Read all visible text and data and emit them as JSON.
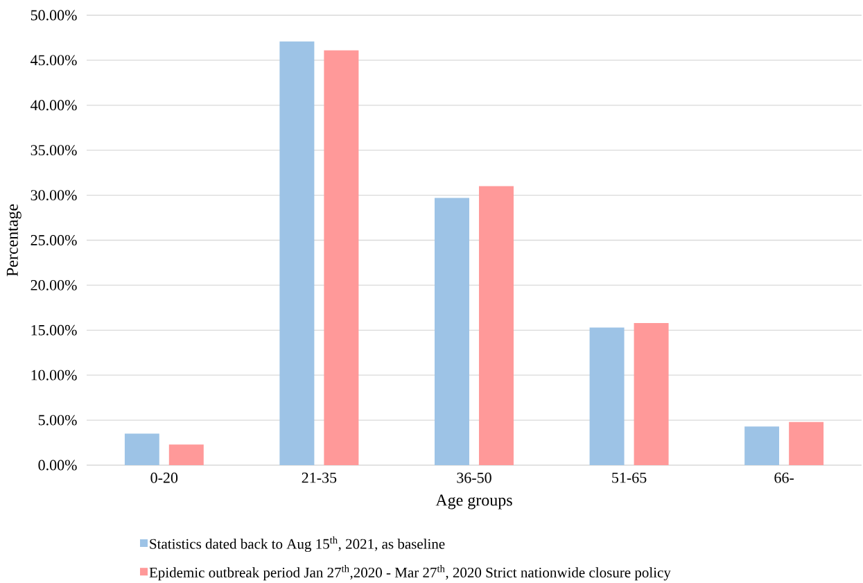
{
  "chart_data": {
    "type": "bar",
    "xlabel": "Age groups",
    "ylabel": "Percentage",
    "categories": [
      "0-20",
      "21-35",
      "36-50",
      "51-65",
      "66-"
    ],
    "series": [
      {
        "name": "Statistics dated back to Aug 15$^{th}$, 2021, as baseline",
        "color": "#9dc3e6",
        "values": [
          3.5,
          47.1,
          29.7,
          15.3,
          4.3
        ]
      },
      {
        "name": "Epidemic outbreak period Jan 27$^{th}$,2020 - Mar 27$^{th}$, 2020 Strict nationwide closure policy",
        "color": "#ff9999",
        "values": [
          2.3,
          46.1,
          31.0,
          15.8,
          4.8
        ]
      }
    ],
    "ylim": [
      0,
      50
    ],
    "yticks": [
      {
        "value": 0,
        "label": "0.00%"
      },
      {
        "value": 5,
        "label": "5.00%"
      },
      {
        "value": 10,
        "label": "10.00%"
      },
      {
        "value": 15,
        "label": "15.00%"
      },
      {
        "value": 20,
        "label": "20.00%"
      },
      {
        "value": 25,
        "label": "25.00%"
      },
      {
        "value": 30,
        "label": "30.00%"
      },
      {
        "value": 35,
        "label": "35.00%"
      },
      {
        "value": 40,
        "label": "40.00%"
      },
      {
        "value": 45,
        "label": "45.00%"
      },
      {
        "value": 50,
        "label": "50.00%"
      }
    ],
    "grid": "y",
    "legend": "bottom"
  }
}
